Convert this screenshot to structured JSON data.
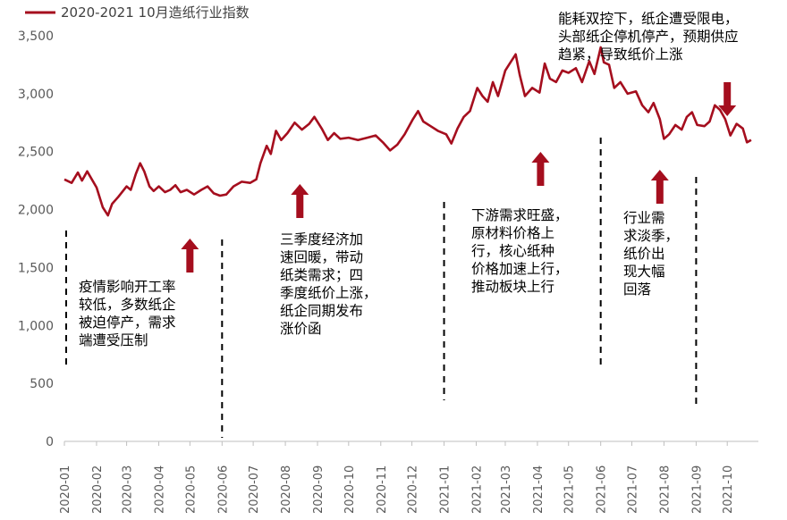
{
  "colors": {
    "series": "#A50E1E",
    "arrow": "#A50E1E",
    "axis": "#BFBFBF",
    "text": "#595959",
    "divider": "#000000"
  },
  "chart_data": {
    "type": "line",
    "legend_position": "top-left",
    "grid": false,
    "series": [
      {
        "name": "2020-2021 10月造纸行业指数",
        "points": [
          [
            "2020-01-01",
            2260
          ],
          [
            "2020-01-08",
            2230
          ],
          [
            "2020-01-14",
            2320
          ],
          [
            "2020-01-18",
            2250
          ],
          [
            "2020-01-23",
            2330
          ],
          [
            "2020-02-01",
            2190
          ],
          [
            "2020-02-07",
            2020
          ],
          [
            "2020-02-12",
            1950
          ],
          [
            "2020-02-16",
            2050
          ],
          [
            "2020-02-22",
            2110
          ],
          [
            "2020-03-01",
            2200
          ],
          [
            "2020-03-05",
            2170
          ],
          [
            "2020-03-10",
            2310
          ],
          [
            "2020-03-14",
            2400
          ],
          [
            "2020-03-18",
            2330
          ],
          [
            "2020-03-23",
            2200
          ],
          [
            "2020-03-27",
            2160
          ],
          [
            "2020-04-01",
            2200
          ],
          [
            "2020-04-07",
            2150
          ],
          [
            "2020-04-12",
            2170
          ],
          [
            "2020-04-17",
            2210
          ],
          [
            "2020-04-22",
            2150
          ],
          [
            "2020-04-28",
            2170
          ],
          [
            "2020-05-05",
            2130
          ],
          [
            "2020-05-12",
            2170
          ],
          [
            "2020-05-18",
            2200
          ],
          [
            "2020-05-24",
            2140
          ],
          [
            "2020-05-30",
            2120
          ],
          [
            "2020-06-05",
            2130
          ],
          [
            "2020-06-12",
            2200
          ],
          [
            "2020-06-20",
            2240
          ],
          [
            "2020-06-28",
            2230
          ],
          [
            "2020-07-04",
            2260
          ],
          [
            "2020-07-08",
            2400
          ],
          [
            "2020-07-14",
            2550
          ],
          [
            "2020-07-18",
            2480
          ],
          [
            "2020-07-23",
            2680
          ],
          [
            "2020-07-28",
            2600
          ],
          [
            "2020-08-03",
            2660
          ],
          [
            "2020-08-10",
            2750
          ],
          [
            "2020-08-17",
            2690
          ],
          [
            "2020-08-24",
            2740
          ],
          [
            "2020-08-29",
            2800
          ],
          [
            "2020-09-05",
            2700
          ],
          [
            "2020-09-11",
            2600
          ],
          [
            "2020-09-17",
            2660
          ],
          [
            "2020-09-23",
            2610
          ],
          [
            "2020-10-01",
            2620
          ],
          [
            "2020-10-10",
            2600
          ],
          [
            "2020-10-19",
            2620
          ],
          [
            "2020-10-27",
            2640
          ],
          [
            "2020-11-03",
            2580
          ],
          [
            "2020-11-10",
            2510
          ],
          [
            "2020-11-17",
            2560
          ],
          [
            "2020-11-24",
            2650
          ],
          [
            "2020-12-02",
            2780
          ],
          [
            "2020-12-07",
            2850
          ],
          [
            "2020-12-12",
            2760
          ],
          [
            "2020-12-19",
            2720
          ],
          [
            "2020-12-26",
            2680
          ],
          [
            "2021-01-03",
            2650
          ],
          [
            "2021-01-08",
            2570
          ],
          [
            "2021-01-14",
            2700
          ],
          [
            "2021-01-20",
            2800
          ],
          [
            "2021-01-26",
            2850
          ],
          [
            "2021-02-02",
            3050
          ],
          [
            "2021-02-07",
            2980
          ],
          [
            "2021-02-12",
            2930
          ],
          [
            "2021-02-17",
            3100
          ],
          [
            "2021-02-22",
            2980
          ],
          [
            "2021-03-01",
            3200
          ],
          [
            "2021-03-06",
            3270
          ],
          [
            "2021-03-11",
            3340
          ],
          [
            "2021-03-15",
            3160
          ],
          [
            "2021-03-20",
            2980
          ],
          [
            "2021-03-27",
            3050
          ],
          [
            "2021-04-03",
            3010
          ],
          [
            "2021-04-08",
            3260
          ],
          [
            "2021-04-13",
            3130
          ],
          [
            "2021-04-19",
            3100
          ],
          [
            "2021-04-25",
            3200
          ],
          [
            "2021-05-01",
            3180
          ],
          [
            "2021-05-08",
            3220
          ],
          [
            "2021-05-14",
            3100
          ],
          [
            "2021-05-21",
            3280
          ],
          [
            "2021-05-26",
            3170
          ],
          [
            "2021-06-01",
            3400
          ],
          [
            "2021-06-04",
            3270
          ],
          [
            "2021-06-09",
            3250
          ],
          [
            "2021-06-14",
            3050
          ],
          [
            "2021-06-20",
            3100
          ],
          [
            "2021-06-27",
            3000
          ],
          [
            "2021-07-05",
            3020
          ],
          [
            "2021-07-11",
            2900
          ],
          [
            "2021-07-17",
            2840
          ],
          [
            "2021-07-22",
            2920
          ],
          [
            "2021-07-28",
            2780
          ],
          [
            "2021-08-01",
            2610
          ],
          [
            "2021-08-06",
            2650
          ],
          [
            "2021-08-12",
            2730
          ],
          [
            "2021-08-18",
            2690
          ],
          [
            "2021-08-23",
            2800
          ],
          [
            "2021-08-28",
            2840
          ],
          [
            "2021-09-02",
            2730
          ],
          [
            "2021-09-09",
            2720
          ],
          [
            "2021-09-14",
            2760
          ],
          [
            "2021-09-19",
            2900
          ],
          [
            "2021-09-24",
            2860
          ],
          [
            "2021-09-29",
            2780
          ],
          [
            "2021-10-04",
            2640
          ],
          [
            "2021-10-10",
            2740
          ],
          [
            "2021-10-16",
            2700
          ],
          [
            "2021-10-20",
            2580
          ],
          [
            "2021-10-24",
            2600
          ]
        ]
      }
    ],
    "x_tick_labels": [
      "2020-01",
      "2020-02",
      "2020-03",
      "2020-04",
      "2020-05",
      "2020-06",
      "2020-07",
      "2020-08",
      "2020-09",
      "2020-10",
      "2020-11",
      "2020-12",
      "2021-01",
      "2021-02",
      "2021-03",
      "2021-04",
      "2021-05",
      "2021-06",
      "2021-07",
      "2021-08",
      "2021-09",
      "2021-10"
    ],
    "xlim": [
      "2020-01-01",
      "2021-10-31"
    ],
    "y_tick_labels": [
      "0",
      "500",
      "1,000",
      "1,500",
      "2,000",
      "2,500",
      "3,000",
      "3,500"
    ],
    "ylim": [
      0,
      3500
    ],
    "dividers": [
      "2020-01-01",
      "2020-06-01",
      "2021-01-01",
      "2021-06-01",
      "2021-09-01"
    ],
    "arrows": [
      {
        "date": "2020-05-01",
        "direction": "up"
      },
      {
        "date": "2020-08-15",
        "direction": "up"
      },
      {
        "date": "2021-04-04",
        "direction": "up"
      },
      {
        "date": "2021-07-28",
        "direction": "up"
      },
      {
        "date": "2021-10-01",
        "direction": "down"
      }
    ],
    "annotations": [
      "疫情影响开工率\n较低，多数纸企\n被迫停产，需求\n端遭受压制",
      "三季度经济加\n速回暖，带动\n纸类需求；四\n季度纸价上涨，\n纸企同期发布\n涨价函",
      "下游需求旺盛，\n原材料价格上\n行，核心纸种\n价格加速上行，\n推动板块上行",
      "行业需\n求淡季，\n纸价出\n现大幅\n回落",
      "能耗双控下，纸企遭受限电，\n头部纸企停机停产，预期供应\n趋紧，导致纸价上涨"
    ]
  }
}
